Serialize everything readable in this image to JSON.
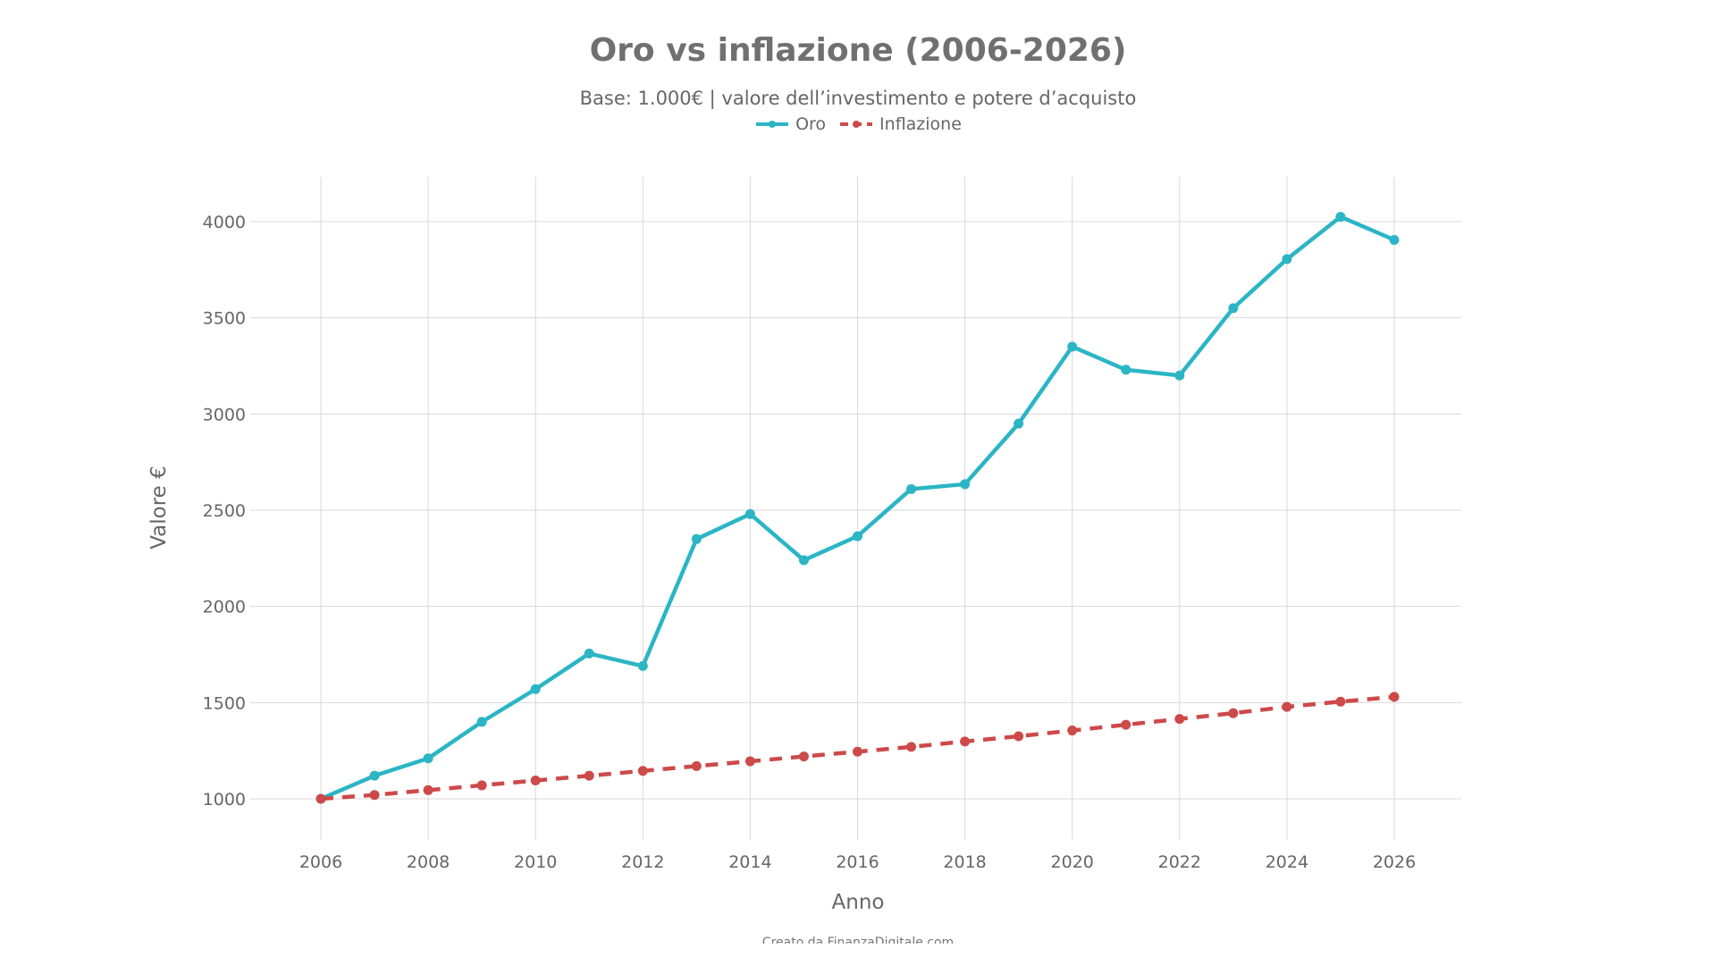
{
  "chart_data": {
    "type": "line",
    "title": "Oro vs inflazione (2006-2026)",
    "subtitle": "Base: 1.000€ | valore dell’investimento e potere d’acquisto",
    "xlabel": "Anno",
    "ylabel": "Valore €",
    "xlim": [
      2006,
      2026
    ],
    "ylim": [
      1000,
      4000
    ],
    "x_ticks": [
      2006,
      2008,
      2010,
      2012,
      2014,
      2016,
      2018,
      2020,
      2022,
      2024,
      2026
    ],
    "y_ticks": [
      1000,
      1500,
      2000,
      2500,
      3000,
      3500,
      4000
    ],
    "grid": true,
    "legend_position": "top-center",
    "x": [
      2006,
      2007,
      2008,
      2009,
      2010,
      2011,
      2012,
      2013,
      2014,
      2015,
      2016,
      2017,
      2018,
      2019,
      2020,
      2021,
      2022,
      2023,
      2024,
      2025,
      2026
    ],
    "series": [
      {
        "name": "Oro",
        "color": "#2bb5c5",
        "style": "solid",
        "values": [
          1000,
          1120,
          1210,
          1400,
          1570,
          1755,
          1690,
          2350,
          2480,
          2240,
          2365,
          2610,
          2635,
          2950,
          3350,
          3230,
          3200,
          3550,
          3805,
          4025,
          3905
        ]
      },
      {
        "name": "Inflazione",
        "color": "#cc4a49",
        "style": "dashed",
        "values": [
          1000,
          1020,
          1045,
          1070,
          1095,
          1120,
          1145,
          1170,
          1195,
          1220,
          1245,
          1270,
          1298,
          1325,
          1355,
          1385,
          1415,
          1445,
          1478,
          1505,
          1530
        ]
      }
    ]
  },
  "footer": {
    "credit": "Creato da FinanzaDigitale.com"
  }
}
